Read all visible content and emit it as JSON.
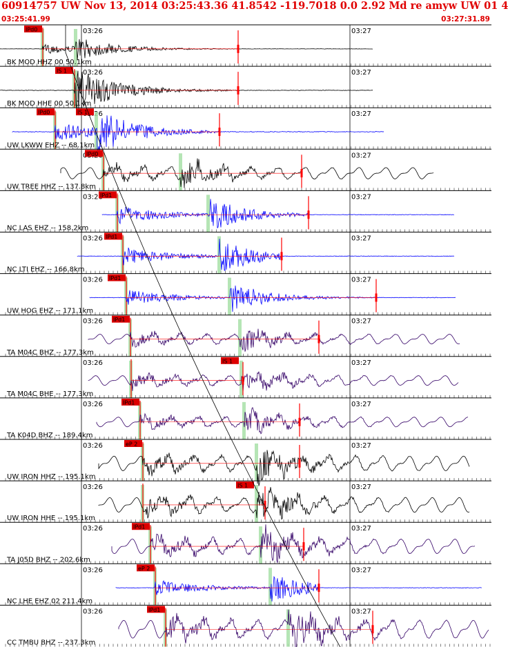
{
  "header": {
    "title": "60914757 UW Nov 13, 2014 03:25:43.36   41.8542 -119.7018  0.0 2.92 Md re amyw UW 01   4",
    "start_time": "03:25:41.99",
    "end_time": "03:27:31.89"
  },
  "time_tick_labels": [
    "03:26",
    "03:27"
  ],
  "colors": {
    "red": "#ff0000",
    "blue": "#0000ff",
    "black": "#000000",
    "purple": "#330066",
    "green": "#a8e0a8"
  },
  "traces": [
    {
      "label": "BK MOD HHZ 00 50.1km",
      "color": "black",
      "style": "impulse",
      "pick": "IPd0",
      "pick2": "",
      "s": "",
      "amp": 0.25,
      "taper": 1
    },
    {
      "label": "BK MOD HHE 00 50.1km",
      "color": "black",
      "style": "impulse",
      "pick": "",
      "pick2": "IS 1",
      "s": "",
      "amp": 0.4,
      "taper": 1
    },
    {
      "label": "UW LKWW EHZ -- 68.1km",
      "color": "blue",
      "style": "impulse",
      "pick": "IPd0",
      "pick2": "IS 1",
      "s": "",
      "amp": 0.5,
      "taper": 1
    },
    {
      "label": "UW TREE HHZ -- 137.8km",
      "color": "black",
      "style": "wavy",
      "pick": "IPd0",
      "pick2": "",
      "s": "",
      "amp": 0.35,
      "taper": 0
    },
    {
      "label": "NC LAS EHZ -- 158.2km",
      "color": "blue",
      "style": "impulse",
      "pick": "IPd1",
      "pick2": "",
      "s": "",
      "amp": 0.45,
      "taper": 1
    },
    {
      "label": "NC LTI EHZ -- 166.8km",
      "color": "blue",
      "style": "impulse",
      "pick": "IPd1",
      "pick2": "",
      "s": "",
      "amp": 0.45,
      "taper": 1
    },
    {
      "label": "UW HOG EHZ -- 171.1km",
      "color": "blue",
      "style": "impulse",
      "pick": "IPd1",
      "pick2": "",
      "s": "",
      "amp": 0.4,
      "taper": 1
    },
    {
      "label": "TA M04C BHZ -- 177.3km",
      "color": "purple",
      "style": "wavy",
      "pick": "IPd1",
      "pick2": "",
      "s": "",
      "amp": 0.3,
      "taper": 0
    },
    {
      "label": "TA M04C BHE -- 177.3km",
      "color": "purple",
      "style": "wavy",
      "pick": "",
      "pick2": "IS 1",
      "s": "",
      "amp": 0.3,
      "taper": 0
    },
    {
      "label": "TA K04D BHZ -- 189.4km",
      "color": "purple",
      "style": "wavy",
      "pick": "IPd1",
      "pick2": "",
      "s": "",
      "amp": 0.3,
      "taper": 0
    },
    {
      "label": "UW IRON HHZ -- 195.1km",
      "color": "black",
      "style": "wavy",
      "pick": "eP 2",
      "pick2": "",
      "s": "",
      "amp": 0.45,
      "taper": 0
    },
    {
      "label": "UW IRON HHE -- 195.1km",
      "color": "black",
      "style": "wavy",
      "pick": "",
      "pick2": "IS 1",
      "s": "",
      "amp": 0.45,
      "taper": 0
    },
    {
      "label": "TA J05D BHZ -- 202.6km",
      "color": "purple",
      "style": "wavy",
      "pick": "IPd1",
      "pick2": "",
      "s": "",
      "amp": 0.45,
      "taper": 0
    },
    {
      "label": "NC LHE EHZ 02 211.4km",
      "color": "blue",
      "style": "impulse",
      "pick": "eP 2",
      "pick2": "",
      "s": "",
      "amp": 0.4,
      "taper": 1
    },
    {
      "label": "CC TMBU BHZ -- 237.3km",
      "color": "purple",
      "style": "wavy",
      "pick": "IPd1",
      "pick2": "",
      "s": "",
      "amp": 0.55,
      "taper": 0
    }
  ]
}
